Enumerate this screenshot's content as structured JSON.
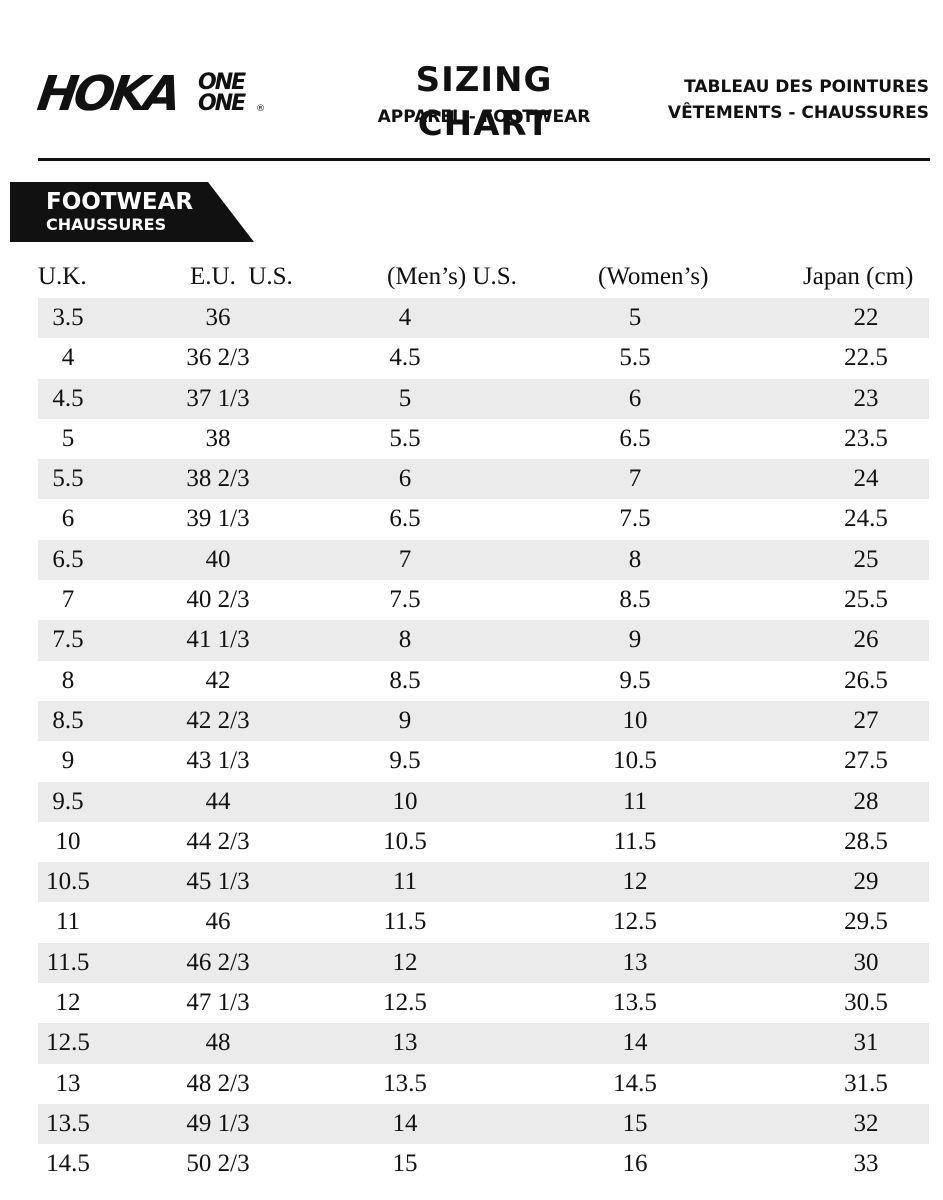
{
  "header": {
    "logo_text": "HOKA",
    "logo_stack_1": "ONE",
    "logo_stack_2": "ONE",
    "logo_reg": "®",
    "title": "SIZING CHART",
    "subtitle": "APPAREL - FOOTWEAR",
    "fr_title": "TABLEAU DES POINTURES",
    "fr_subtitle": "VÊTEMENTS - CHAUSSURES"
  },
  "section": {
    "title": "FOOTWEAR",
    "subtitle": "CHAUSSURES",
    "banner_color": "#111111"
  },
  "table": {
    "headers": {
      "uk": "U.K.",
      "eu_us": "E.U.  U.S.",
      "men": "(Men’s) U.S.",
      "women": "(Women’s)",
      "japan": "Japan (cm)"
    },
    "row_shade_color": "#ebebeb",
    "rows": [
      {
        "uk": "3.5",
        "eu": "36",
        "men": "4",
        "women": "5",
        "jp": "22"
      },
      {
        "uk": "4",
        "eu": "36 2/3",
        "men": "4.5",
        "women": "5.5",
        "jp": "22.5"
      },
      {
        "uk": "4.5",
        "eu": "37 1/3",
        "men": "5",
        "women": "6",
        "jp": "23"
      },
      {
        "uk": "5",
        "eu": "38",
        "men": "5.5",
        "women": "6.5",
        "jp": "23.5"
      },
      {
        "uk": "5.5",
        "eu": "38 2/3",
        "men": "6",
        "women": "7",
        "jp": "24"
      },
      {
        "uk": "6",
        "eu": "39 1/3",
        "men": "6.5",
        "women": "7.5",
        "jp": "24.5"
      },
      {
        "uk": "6.5",
        "eu": "40",
        "men": "7",
        "women": "8",
        "jp": "25"
      },
      {
        "uk": "7",
        "eu": "40 2/3",
        "men": "7.5",
        "women": "8.5",
        "jp": "25.5"
      },
      {
        "uk": "7.5",
        "eu": "41 1/3",
        "men": "8",
        "women": "9",
        "jp": "26"
      },
      {
        "uk": "8",
        "eu": "42",
        "men": "8.5",
        "women": "9.5",
        "jp": "26.5"
      },
      {
        "uk": "8.5",
        "eu": "42 2/3",
        "men": "9",
        "women": "10",
        "jp": "27"
      },
      {
        "uk": "9",
        "eu": "43 1/3",
        "men": "9.5",
        "women": "10.5",
        "jp": "27.5"
      },
      {
        "uk": "9.5",
        "eu": "44",
        "men": "10",
        "women": "11",
        "jp": "28"
      },
      {
        "uk": "10",
        "eu": "44 2/3",
        "men": "10.5",
        "women": "11.5",
        "jp": "28.5"
      },
      {
        "uk": "10.5",
        "eu": "45 1/3",
        "men": "11",
        "women": "12",
        "jp": "29"
      },
      {
        "uk": "11",
        "eu": "46",
        "men": "11.5",
        "women": "12.5",
        "jp": "29.5"
      },
      {
        "uk": "11.5",
        "eu": "46 2/3",
        "men": "12",
        "women": "13",
        "jp": "30"
      },
      {
        "uk": "12",
        "eu": "47 1/3",
        "men": "12.5",
        "women": "13.5",
        "jp": "30.5"
      },
      {
        "uk": "12.5",
        "eu": "48",
        "men": "13",
        "women": "14",
        "jp": "31"
      },
      {
        "uk": "13",
        "eu": "48 2/3",
        "men": "13.5",
        "women": "14.5",
        "jp": "31.5"
      },
      {
        "uk": "13.5",
        "eu": "49 1/3",
        "men": "14",
        "women": "15",
        "jp": "32"
      },
      {
        "uk": "14.5",
        "eu": "50 2/3",
        "men": "15",
        "women": "16",
        "jp": "33"
      }
    ]
  }
}
